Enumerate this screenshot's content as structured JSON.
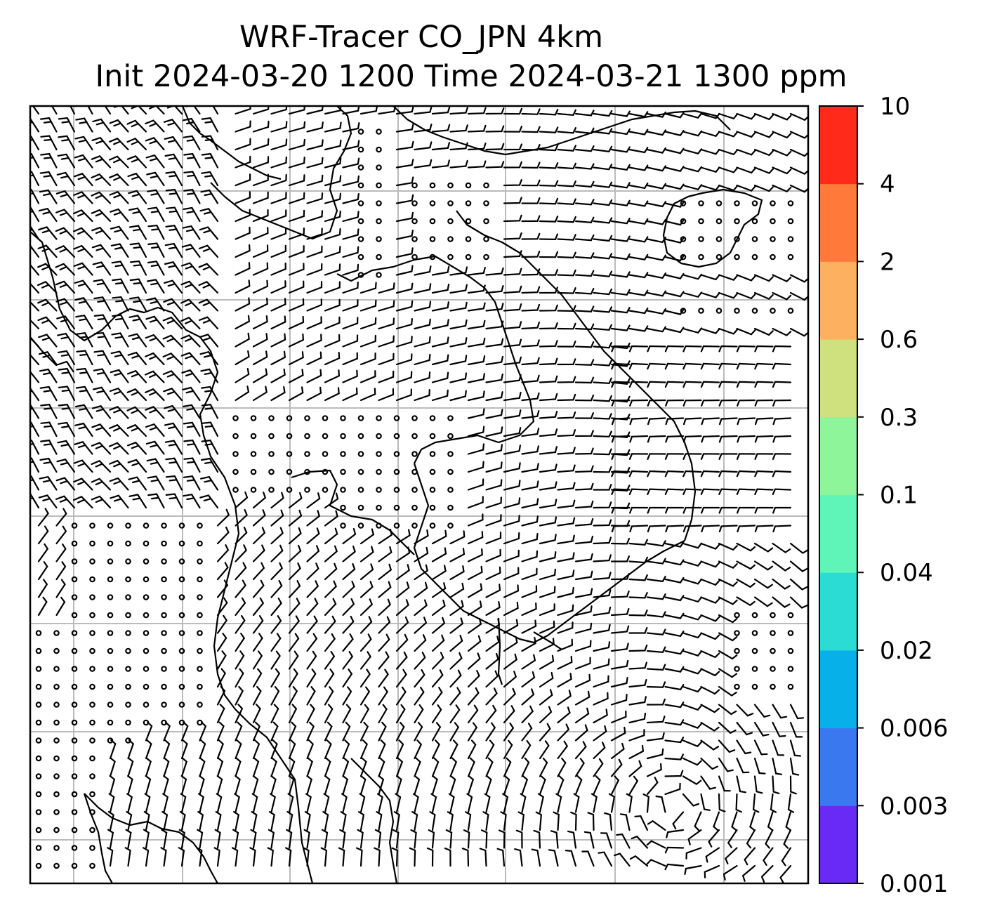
{
  "title": {
    "line1": "WRF-Tracer CO_JPN 4km",
    "line2": "Init 2024-03-20 1200 Time 2024-03-21 1300 ppm"
  },
  "colorbar": {
    "ticks": [
      "0.001",
      "0.003",
      "0.006",
      "0.02",
      "0.04",
      "0.1",
      "0.3",
      "0.6",
      "2",
      "4",
      "10"
    ],
    "colors": [
      "#6a2af5",
      "#3a78f0",
      "#08b0ea",
      "#2bdcd4",
      "#60f5b8",
      "#8ef59a",
      "#cfe07f",
      "#fcb060",
      "#ff7a3a",
      "#ff2a1a"
    ]
  },
  "map": {
    "frame_color": "#000000",
    "grid_color": "#bbbbbb",
    "symbols": [
      "wind-barb-icon",
      "calm-circle-icon"
    ]
  }
}
